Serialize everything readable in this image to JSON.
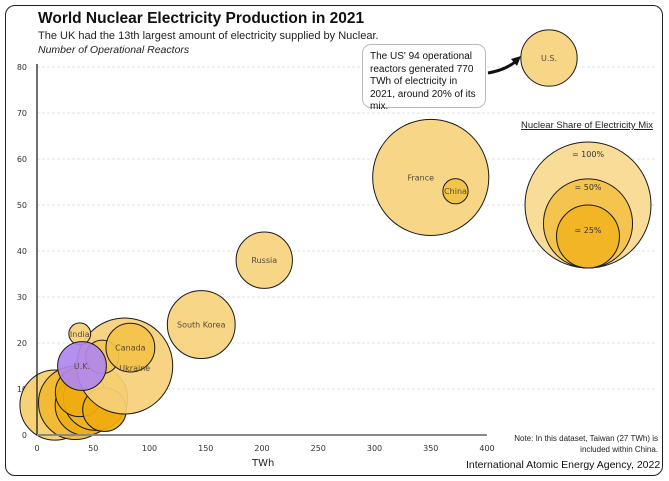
{
  "chart_data": {
    "type": "scatter",
    "title": "World Nuclear Electricity Production in 2021",
    "subtitle": "The UK had the 13th largest amount of electricity supplied by Nuclear.",
    "ylabel": "Number of Operational Reactors",
    "xlabel": "TWh",
    "xlim": [
      0,
      400
    ],
    "ylim": [
      0,
      80
    ],
    "xticks": [
      0,
      50,
      100,
      150,
      200,
      250,
      300,
      350,
      400
    ],
    "yticks": [
      0,
      10,
      20,
      30,
      40,
      50,
      60,
      70,
      80
    ],
    "grid": "horizontal dashed",
    "size_encoding": "Nuclear share of electricity mix (%)",
    "bubbles": [
      {
        "label": "",
        "x": 16,
        "y": 6.5,
        "share": 31,
        "color": "#f5cd6a"
      },
      {
        "label": "",
        "x": 34,
        "y": 7,
        "share": 34,
        "color": "#f1b830"
      },
      {
        "label": "",
        "x": 43,
        "y": 6.5,
        "share": 23,
        "color": "#efae12"
      },
      {
        "label": "",
        "x": 52,
        "y": 8,
        "share": 26,
        "color": "#f0b21e"
      },
      {
        "label": "",
        "x": 38,
        "y": 9.3,
        "share": 15,
        "color": "#efad10"
      },
      {
        "label": "",
        "x": 60,
        "y": 5.5,
        "share": 12,
        "color": "#efad10"
      },
      {
        "label": "Ukraine",
        "x": 78,
        "y": 15,
        "share": 58,
        "color": "#f6d07a"
      },
      {
        "label": "",
        "x": 58,
        "y": 17,
        "share": 7,
        "color": "#f3c552"
      },
      {
        "label": "Canada",
        "x": 83,
        "y": 19,
        "share": 15,
        "color": "#f3c24a"
      },
      {
        "label": "India",
        "x": 38,
        "y": 22,
        "share": 3,
        "color": "#f6d07a"
      },
      {
        "label": "U.K.",
        "x": 40,
        "y": 15,
        "share": 15,
        "color": "#b087ee"
      },
      {
        "label": "South Korea",
        "x": 146,
        "y": 24,
        "share": 29,
        "color": "#f6d27e"
      },
      {
        "label": "Russia",
        "x": 202,
        "y": 38,
        "share": 20,
        "color": "#f6d27e"
      },
      {
        "label": "France",
        "x": 350,
        "y": 56,
        "share": 85,
        "color": "#f6d27e"
      },
      {
        "label": "China",
        "x": 372,
        "y": 53,
        "share": 4,
        "color": "#f2c244"
      },
      {
        "label": "U.S.",
        "x": 770,
        "y": 94,
        "share": 20,
        "color": "#f6d27e",
        "off_scale": true
      }
    ],
    "legend": {
      "title": "Nuclear Share of Electricity Mix",
      "items": [
        {
          "label": "= 100%",
          "share": 100,
          "color": "#f9dc98"
        },
        {
          "label": "= 50%",
          "share": 50,
          "color": "#f4c44e"
        },
        {
          "label": "= 25%",
          "share": 25,
          "color": "#f1b526"
        }
      ],
      "placement": "right"
    },
    "annotation": "The US' 94 operational reactors generated 770 TWh of electricity in 2021, around 20% of its mix.",
    "note": "Note: In this dataset, Taiwan (27 TWh) is included within China.",
    "source": "International Atomic Energy Agency, 2022"
  }
}
